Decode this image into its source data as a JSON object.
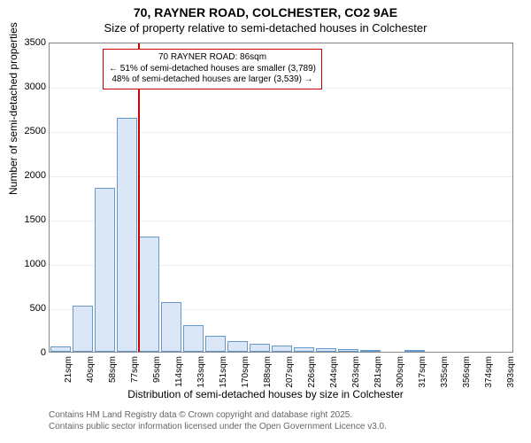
{
  "titles": {
    "line1": "70, RAYNER ROAD, COLCHESTER, CO2 9AE",
    "line2": "Size of property relative to semi-detached houses in Colchester"
  },
  "axes": {
    "ylabel": "Number of semi-detached properties",
    "xlabel": "Distribution of semi-detached houses by size in Colchester",
    "ylim": [
      0,
      3500
    ],
    "ytick_step": 500,
    "yticks": [
      0,
      500,
      1000,
      1500,
      2000,
      2500,
      3000,
      3500
    ],
    "tick_label_fontsize": 11,
    "axis_label_fontsize": 12
  },
  "chart": {
    "type": "histogram",
    "background_color": "#ffffff",
    "bar_fill": "#dbe7f6",
    "bar_stroke": "#6699cc",
    "grid_color": "#eeeeee",
    "border_color": "#888888",
    "bar_width_ratio": 0.95,
    "categories": [
      "21sqm",
      "40sqm",
      "58sqm",
      "77sqm",
      "95sqm",
      "114sqm",
      "133sqm",
      "151sqm",
      "170sqm",
      "188sqm",
      "207sqm",
      "226sqm",
      "244sqm",
      "263sqm",
      "281sqm",
      "300sqm",
      "317sqm",
      "335sqm",
      "356sqm",
      "374sqm",
      "393sqm"
    ],
    "values": [
      60,
      520,
      1850,
      2640,
      1300,
      560,
      300,
      180,
      120,
      90,
      70,
      50,
      40,
      30,
      5,
      0,
      5,
      0,
      0,
      0,
      0
    ]
  },
  "marker": {
    "value_label": "86sqm",
    "color": "#cc0000",
    "position_between_index": 3.5,
    "callout_lines": {
      "l1": "70 RAYNER ROAD: 86sqm",
      "l2": "← 51% of semi-detached houses are smaller (3,789)",
      "l3": "48% of semi-detached houses are larger (3,539) →"
    }
  },
  "attribution": {
    "l1": "Contains HM Land Registry data © Crown copyright and database right 2025.",
    "l2": "Contains public sector information licensed under the Open Government Licence v3.0."
  }
}
